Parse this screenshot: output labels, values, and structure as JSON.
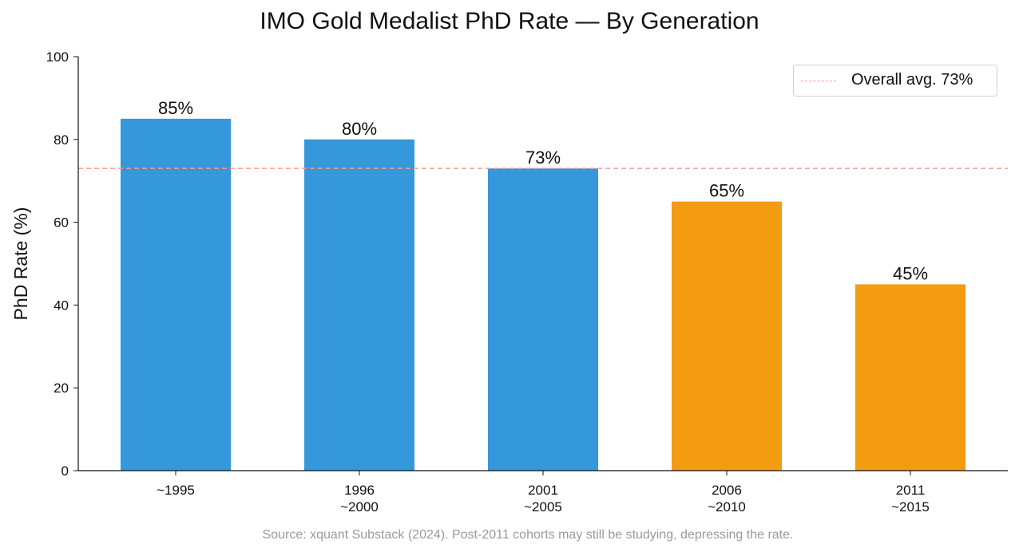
{
  "chart_data": {
    "type": "bar",
    "title": "IMO Gold Medalist PhD Rate — By Generation",
    "ylabel": "PhD Rate (%)",
    "xlabel": "",
    "ylim": [
      0,
      100
    ],
    "yticks": [
      "0",
      "20",
      "40",
      "60",
      "80",
      "100"
    ],
    "categories": [
      [
        "~1995"
      ],
      [
        "1996",
        "~2000"
      ],
      [
        "2001",
        "~2005"
      ],
      [
        "2006",
        "~2010"
      ],
      [
        "2011",
        "~2015"
      ]
    ],
    "values": [
      85,
      80,
      73,
      65,
      45
    ],
    "value_labels": [
      "85%",
      "80%",
      "73%",
      "65%",
      "45%"
    ],
    "bar_colors": [
      "#3498db",
      "#3498db",
      "#3498db",
      "#f39c12",
      "#f39c12"
    ],
    "reference_line": {
      "value": 73,
      "label": "Overall avg. 73%",
      "color": "#f29b96",
      "style": "dashed"
    },
    "legend_position": "top-right",
    "grid": false,
    "source": "Source: xquant Substack (2024). Post-2011 cohorts may still be studying, depressing the rate."
  }
}
